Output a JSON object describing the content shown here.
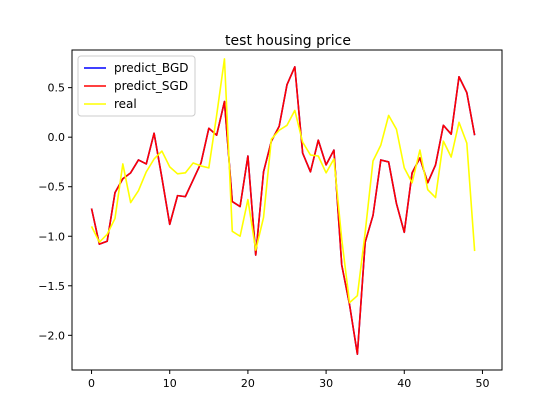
{
  "chart_data": {
    "type": "line",
    "title": "test housing price",
    "xlabel": "",
    "ylabel": "",
    "xlim": [
      -2.5,
      52.5
    ],
    "ylim": [
      -2.35,
      0.88
    ],
    "xticks": [
      0,
      10,
      20,
      30,
      40,
      50
    ],
    "yticks": [
      0.5,
      0.0,
      -0.5,
      -1.0,
      -1.5,
      -2.0
    ],
    "xtick_labels": [
      "0",
      "10",
      "20",
      "30",
      "40",
      "50"
    ],
    "ytick_labels": [
      "0.5",
      "0.0",
      "−0.5",
      "−1.0",
      "−1.5",
      "−2.0"
    ],
    "grid": false,
    "legend_position": "top-left",
    "x": [
      0,
      1,
      2,
      3,
      4,
      5,
      6,
      7,
      8,
      9,
      10,
      11,
      12,
      13,
      14,
      15,
      16,
      17,
      18,
      19,
      20,
      21,
      22,
      23,
      24,
      25,
      26,
      27,
      28,
      29,
      30,
      31,
      32,
      33,
      34,
      35,
      36,
      37,
      38,
      39,
      40,
      41,
      42,
      43,
      44,
      45,
      46,
      47,
      48,
      49,
      50
    ],
    "series": [
      {
        "name": "predict_BGD",
        "color": "#0000ff",
        "values": [
          -0.72,
          -1.08,
          -1.05,
          -0.56,
          -0.42,
          -0.36,
          -0.23,
          -0.27,
          0.04,
          -0.41,
          -0.88,
          -0.59,
          -0.6,
          -0.43,
          -0.26,
          0.09,
          0.02,
          0.36,
          -0.65,
          -0.7,
          -0.19,
          -1.19,
          -0.35,
          -0.04,
          0.11,
          0.53,
          0.71,
          -0.16,
          -0.35,
          -0.03,
          -0.28,
          -0.13,
          -1.29,
          -1.69,
          -2.19,
          -1.06,
          -0.79,
          -0.23,
          -0.25,
          -0.67,
          -0.96,
          -0.36,
          -0.21,
          -0.46,
          -0.28,
          0.12,
          0.03,
          0.61,
          0.45,
          0.02,
          null
        ]
      },
      {
        "name": "predict_SGD",
        "color": "#ff0000",
        "values": [
          -0.72,
          -1.08,
          -1.05,
          -0.56,
          -0.42,
          -0.36,
          -0.23,
          -0.27,
          0.04,
          -0.41,
          -0.88,
          -0.59,
          -0.6,
          -0.43,
          -0.26,
          0.09,
          0.02,
          0.36,
          -0.65,
          -0.7,
          -0.19,
          -1.19,
          -0.35,
          -0.04,
          0.11,
          0.53,
          0.71,
          -0.16,
          -0.35,
          -0.03,
          -0.28,
          -0.13,
          -1.29,
          -1.69,
          -2.19,
          -1.06,
          -0.79,
          -0.23,
          -0.25,
          -0.67,
          -0.96,
          -0.36,
          -0.21,
          -0.46,
          -0.28,
          0.12,
          0.03,
          0.61,
          0.45,
          0.02,
          null
        ]
      },
      {
        "name": "real",
        "color": "#ffff00",
        "values": [
          -0.9,
          -1.06,
          -0.98,
          -0.82,
          -0.27,
          -0.66,
          -0.54,
          -0.35,
          -0.22,
          -0.14,
          -0.3,
          -0.37,
          -0.36,
          -0.26,
          -0.29,
          -0.31,
          0.22,
          0.79,
          -0.95,
          -1.0,
          -0.63,
          -1.14,
          -0.81,
          -0.02,
          0.07,
          0.12,
          0.27,
          -0.05,
          -0.18,
          -0.19,
          -0.36,
          -0.22,
          -1.03,
          -1.67,
          -1.6,
          -0.96,
          -0.24,
          -0.08,
          0.22,
          0.08,
          -0.31,
          -0.46,
          -0.13,
          -0.53,
          -0.61,
          -0.04,
          -0.2,
          0.15,
          -0.06,
          -1.15,
          null
        ]
      }
    ]
  }
}
